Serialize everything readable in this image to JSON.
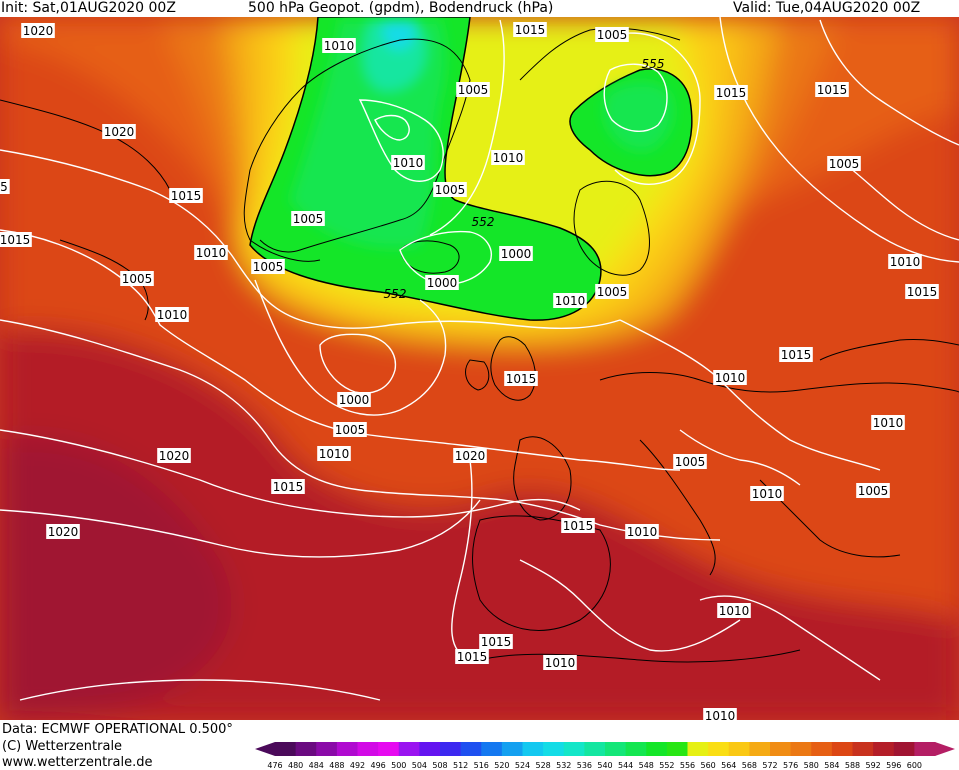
{
  "header": {
    "init": "Init: Sat,01AUG2020 00Z",
    "title": "500 hPa Geopot. (gpdm), Bodendruck (hPa)",
    "valid": "Valid: Tue,04AUG2020 00Z"
  },
  "footer": {
    "data_line": "Data: ECMWF OPERATIONAL 0.500°",
    "copyright": "(C) Wetterzentrale",
    "website": "www.wetterzentrale.de"
  },
  "legend": {
    "values": [
      "476",
      "480",
      "484",
      "488",
      "492",
      "496",
      "500",
      "504",
      "508",
      "512",
      "516",
      "520",
      "524",
      "528",
      "532",
      "536",
      "540",
      "544",
      "548",
      "552",
      "556",
      "560",
      "564",
      "568",
      "572",
      "576",
      "580",
      "584",
      "588",
      "592",
      "596",
      "600"
    ],
    "colors": [
      "#4b0a5a",
      "#6a0a80",
      "#8a0aa8",
      "#b00ad0",
      "#d20ae6",
      "#e60af0",
      "#9a14f0",
      "#6414f0",
      "#3c28f0",
      "#1e50f0",
      "#1478f0",
      "#14a0f0",
      "#14c8f0",
      "#14dce6",
      "#14e6c8",
      "#14e6a0",
      "#14e678",
      "#14e650",
      "#14e628",
      "#28e614",
      "#e6f014",
      "#fade14",
      "#fac814",
      "#f5aa14",
      "#f08c14",
      "#eb7814",
      "#e65f14",
      "#dc4614",
      "#c8321e",
      "#b41e28",
      "#a01432",
      "#b41e64"
    ]
  },
  "isobars": [
    {
      "text": "1020"
    },
    {
      "text": "1010"
    },
    {
      "text": "1015"
    },
    {
      "text": "1005"
    },
    {
      "text": "1005"
    },
    {
      "text": "555"
    },
    {
      "text": "1015"
    },
    {
      "text": "1015"
    },
    {
      "text": "1020"
    },
    {
      "text": "1010"
    },
    {
      "text": "1010"
    },
    {
      "text": "1005"
    },
    {
      "text": "1015"
    },
    {
      "text": "1005"
    },
    {
      "text": "5"
    },
    {
      "text": "1015"
    },
    {
      "text": "1010"
    },
    {
      "text": "1005"
    },
    {
      "text": "552"
    },
    {
      "text": "1005"
    },
    {
      "text": "1000"
    },
    {
      "text": "1010"
    },
    {
      "text": "1000"
    },
    {
      "text": "1005"
    },
    {
      "text": "1010"
    },
    {
      "text": "1015"
    },
    {
      "text": "552"
    },
    {
      "text": "1010"
    },
    {
      "text": "1005"
    },
    {
      "text": "1015"
    },
    {
      "text": "1010"
    },
    {
      "text": "1015"
    },
    {
      "text": "1000"
    },
    {
      "text": "1005"
    },
    {
      "text": "1010"
    },
    {
      "text": "1010"
    },
    {
      "text": "1020"
    },
    {
      "text": "1020"
    },
    {
      "text": "1005"
    },
    {
      "text": "1005"
    },
    {
      "text": "1015"
    },
    {
      "text": "1010"
    },
    {
      "text": "1015"
    },
    {
      "text": "1010"
    },
    {
      "text": "1020"
    },
    {
      "text": "1010"
    },
    {
      "text": "1015"
    },
    {
      "text": "1015"
    },
    {
      "text": "1010"
    },
    {
      "text": "1010"
    }
  ]
}
